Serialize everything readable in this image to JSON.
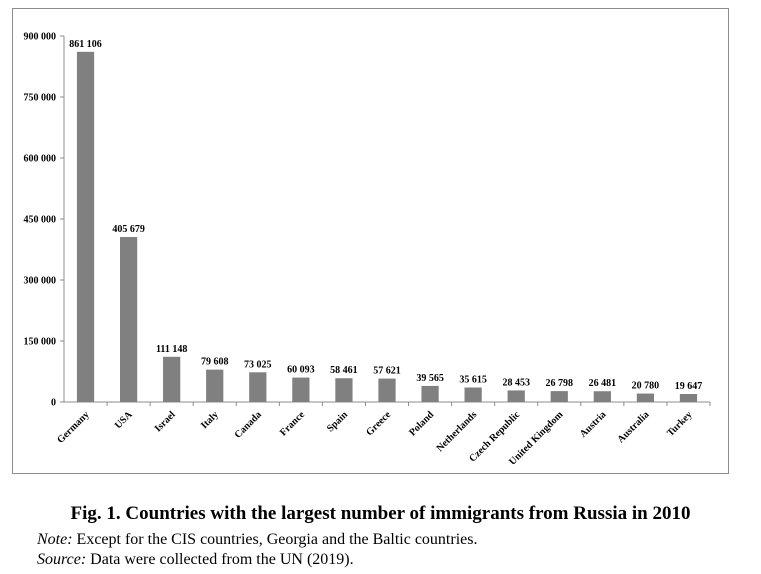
{
  "chart_data": {
    "type": "bar",
    "categories": [
      "Germany",
      "USA",
      "Israel",
      "Italy",
      "Canada",
      "France",
      "Spain",
      "Greece",
      "Poland",
      "Netherlands",
      "Czech Republic",
      "United Kingdom",
      "Austria",
      "Australia",
      "Turkey"
    ],
    "values": [
      861106,
      405679,
      111148,
      79608,
      73025,
      60093,
      58461,
      57621,
      39565,
      35615,
      28453,
      26798,
      26481,
      20780,
      19647
    ],
    "value_labels": [
      "861 106",
      "405 679",
      "111 148",
      "79 608",
      "73 025",
      "60 093",
      "58 461",
      "57 621",
      "39 565",
      "35 615",
      "28 453",
      "26 798",
      "26 481",
      "20 780",
      "19 647"
    ],
    "ylim": [
      0,
      900000
    ],
    "yticks": [
      0,
      150000,
      300000,
      450000,
      600000,
      750000,
      900000
    ],
    "ytick_labels": [
      "0",
      "150 000",
      "300 000",
      "450 000",
      "600 000",
      "750 000",
      "900 000"
    ],
    "grid": false,
    "legend": "none",
    "bar_color": "#808080"
  },
  "caption": {
    "title": "Fig. 1. Countries with the largest number of immigrants from Russia in 2010",
    "note_label": "Note:",
    "note_text": " Except for the CIS countries, Georgia and the Baltic countries.",
    "source_label": "Source:",
    "source_text": " Data were collected from the UN (2019)."
  }
}
